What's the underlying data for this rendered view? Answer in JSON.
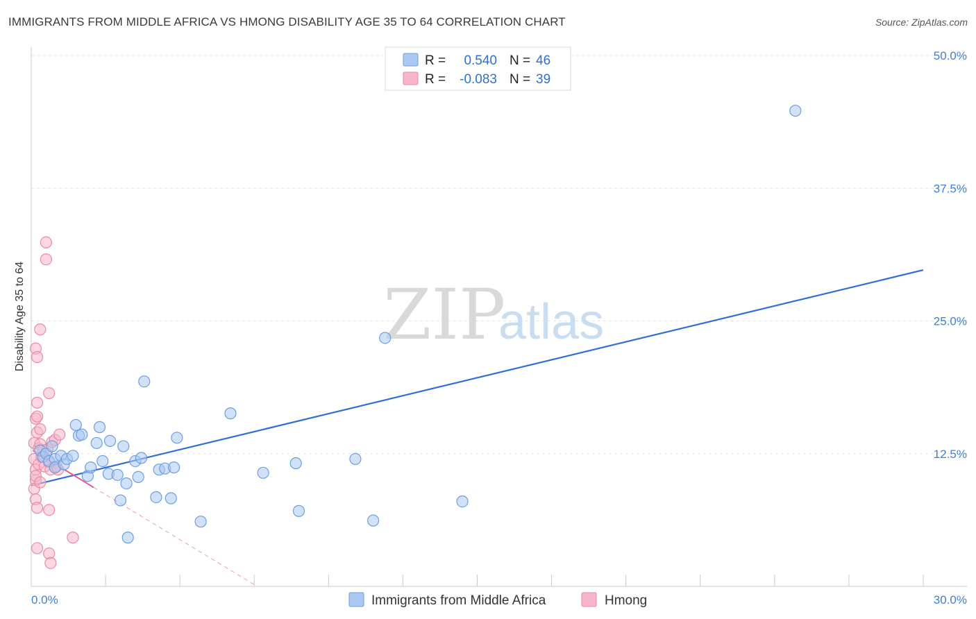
{
  "title": "IMMIGRANTS FROM MIDDLE AFRICA VS HMONG DISABILITY AGE 35 TO 64 CORRELATION CHART",
  "source": "Source: ZipAtlas.com",
  "watermark": {
    "zip": "ZIP",
    "atlas": "atlas"
  },
  "legend": {
    "rows": [
      {
        "r_label": "R =",
        "r_value": "0.540",
        "n_label": "N =",
        "n_value": "46",
        "color": "#a9c8f2"
      },
      {
        "r_label": "R =",
        "r_value": "-0.083",
        "n_label": "N =",
        "n_value": "39",
        "color": "#f7b6c8"
      }
    ]
  },
  "colors": {
    "blue_fill": "#a9c8f2",
    "blue_stroke": "#6b9ee0",
    "blue_line": "#2e6fd2",
    "pink_fill": "#f7b6c8",
    "pink_stroke": "#e78aa7",
    "pink_line": "#e45a8c",
    "grid": "#e1e1e1",
    "axis_text": "#3d7fd6"
  },
  "chart_data": {
    "type": "scatter",
    "title": "IMMIGRANTS FROM MIDDLE AFRICA VS HMONG DISABILITY AGE 35 TO 64 CORRELATION CHART",
    "xlabel": "",
    "ylabel": "Disability Age 35 to 64",
    "xlim": [
      0,
      30
    ],
    "ylim": [
      0,
      50
    ],
    "x_tick_labels": [
      "0.0%",
      "30.0%"
    ],
    "y_ticks": [
      12.5,
      25.0,
      37.5,
      50.0
    ],
    "y_tick_labels": [
      "12.5%",
      "25.0%",
      "37.5%",
      "50.0%"
    ],
    "series": [
      {
        "name": "Immigrants from Middle Africa",
        "color": "#a9c8f2",
        "points": [
          [
            0.3,
            12.8
          ],
          [
            0.4,
            12.2
          ],
          [
            0.5,
            12.5
          ],
          [
            0.6,
            11.8
          ],
          [
            0.7,
            13.2
          ],
          [
            0.8,
            12.0
          ],
          [
            0.8,
            11.2
          ],
          [
            1.0,
            12.3
          ],
          [
            1.1,
            11.5
          ],
          [
            1.2,
            12.0
          ],
          [
            1.4,
            12.3
          ],
          [
            1.5,
            15.2
          ],
          [
            1.6,
            14.2
          ],
          [
            1.7,
            14.3
          ],
          [
            1.9,
            10.4
          ],
          [
            2.0,
            11.2
          ],
          [
            2.2,
            13.5
          ],
          [
            2.3,
            15.0
          ],
          [
            2.4,
            11.8
          ],
          [
            2.6,
            10.6
          ],
          [
            2.65,
            13.7
          ],
          [
            2.9,
            10.5
          ],
          [
            3.0,
            8.1
          ],
          [
            3.1,
            13.2
          ],
          [
            3.2,
            9.7
          ],
          [
            3.25,
            4.6
          ],
          [
            3.5,
            11.8
          ],
          [
            3.6,
            10.3
          ],
          [
            3.7,
            12.1
          ],
          [
            3.8,
            19.3
          ],
          [
            4.2,
            8.4
          ],
          [
            4.3,
            11.0
          ],
          [
            4.5,
            11.1
          ],
          [
            4.7,
            8.3
          ],
          [
            4.8,
            11.2
          ],
          [
            4.9,
            14.0
          ],
          [
            5.7,
            6.1
          ],
          [
            6.7,
            16.3
          ],
          [
            7.8,
            10.7
          ],
          [
            8.9,
            11.6
          ],
          [
            9.0,
            7.1
          ],
          [
            10.9,
            12.0
          ],
          [
            11.5,
            6.2
          ],
          [
            11.9,
            23.4
          ],
          [
            14.5,
            8.0
          ],
          [
            25.7,
            44.8
          ]
        ],
        "trend": {
          "x": [
            0,
            30
          ],
          "y": [
            9.5,
            29.8
          ]
        }
      },
      {
        "name": "Hmong",
        "color": "#f7b6c8",
        "points": [
          [
            0.1,
            13.5
          ],
          [
            0.1,
            12.0
          ],
          [
            0.15,
            11.0
          ],
          [
            0.15,
            10.0
          ],
          [
            0.1,
            9.2
          ],
          [
            0.15,
            8.2
          ],
          [
            0.2,
            7.4
          ],
          [
            0.15,
            15.8
          ],
          [
            0.2,
            17.3
          ],
          [
            0.15,
            22.4
          ],
          [
            0.2,
            21.6
          ],
          [
            0.2,
            14.5
          ],
          [
            0.25,
            13.0
          ],
          [
            0.25,
            11.5
          ],
          [
            0.2,
            3.6
          ],
          [
            0.3,
            14.8
          ],
          [
            0.3,
            13.4
          ],
          [
            0.35,
            12.2
          ],
          [
            0.4,
            12.8
          ],
          [
            0.45,
            11.3
          ],
          [
            0.3,
            24.2
          ],
          [
            0.5,
            32.4
          ],
          [
            0.5,
            30.8
          ],
          [
            0.6,
            18.2
          ],
          [
            0.55,
            12.9
          ],
          [
            0.6,
            11.7
          ],
          [
            0.65,
            11.0
          ],
          [
            0.7,
            13.6
          ],
          [
            0.6,
            3.1
          ],
          [
            0.65,
            2.2
          ],
          [
            0.6,
            7.2
          ],
          [
            0.8,
            13.8
          ],
          [
            0.85,
            11.3
          ],
          [
            0.9,
            11.0
          ],
          [
            0.95,
            14.3
          ],
          [
            1.4,
            4.6
          ],
          [
            0.2,
            16.0
          ],
          [
            0.15,
            10.4
          ],
          [
            0.3,
            9.8
          ]
        ],
        "trend": {
          "x": [
            0.05,
            7.6
          ],
          "y": [
            12.8,
            0.0
          ],
          "solid_until_x": 2.1
        }
      }
    ]
  },
  "bottom_legend": [
    {
      "label": "Immigrants from Middle Africa",
      "color": "#a9c8f2"
    },
    {
      "label": "Hmong",
      "color": "#f7b6c8"
    }
  ]
}
